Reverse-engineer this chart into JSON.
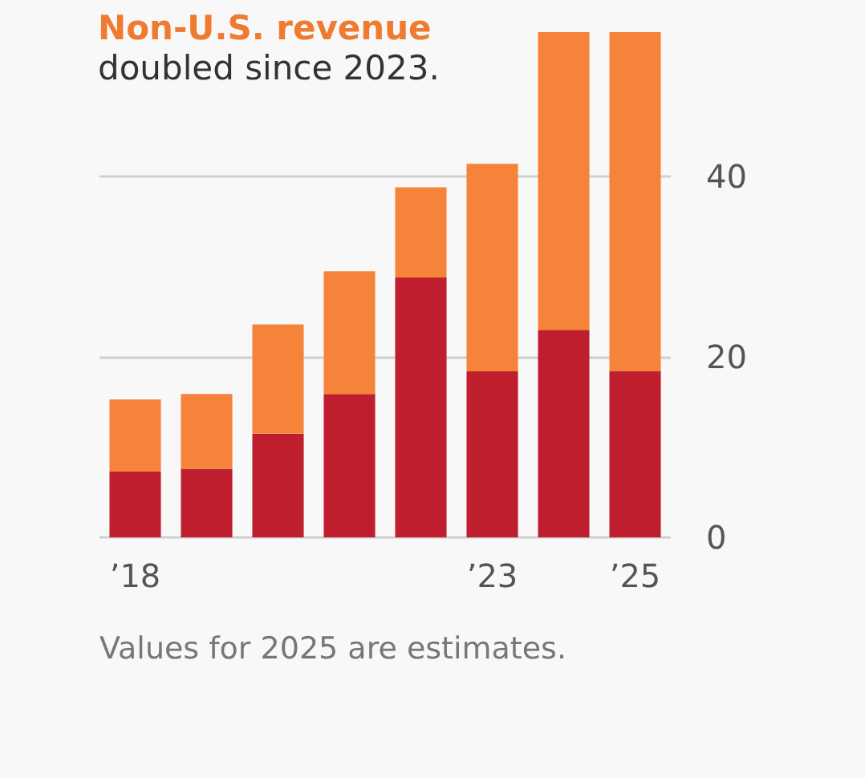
{
  "chart_data": {
    "type": "bar",
    "title": "Non-U.S. revenue",
    "subtitle": "doubled since 2023.",
    "categories": [
      "’18",
      null,
      null,
      null,
      null,
      "’23",
      null,
      "’25"
    ],
    "stacked": true,
    "series": [
      {
        "color": "#be1e2d",
        "values": [
          7.3,
          7.6,
          11.5,
          15.9,
          28.8,
          18.4,
          23.0,
          18.4
        ]
      },
      {
        "color": "#f5843a",
        "values": [
          8.0,
          8.3,
          12.1,
          13.6,
          10.0,
          23.0,
          33.0,
          37.6
        ]
      }
    ],
    "ylim": [
      0,
      56
    ],
    "yticks": [
      0,
      20,
      40
    ],
    "grid": "y",
    "annotations": [
      "Values for 2025 are estimates."
    ]
  }
}
